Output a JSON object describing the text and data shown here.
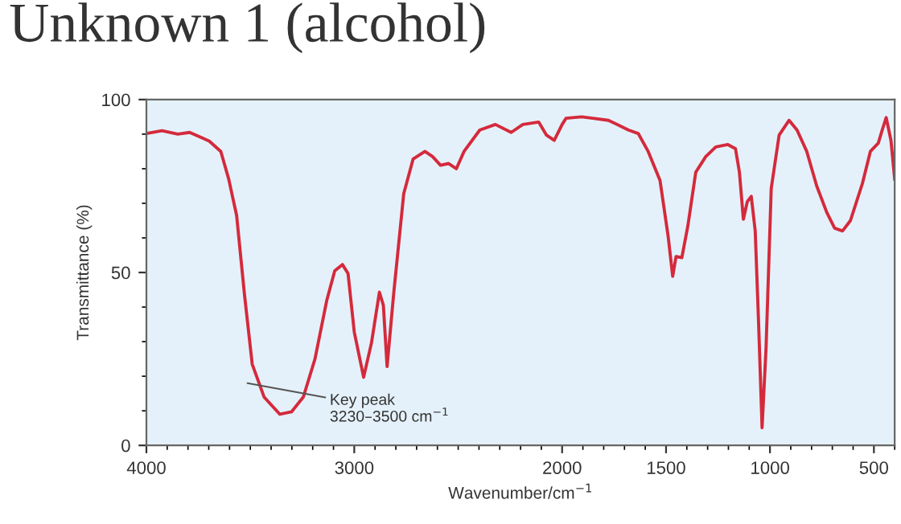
{
  "chart_data": {
    "type": "line",
    "title": "Unknown 1 (alcohol)",
    "xlabel": "Wavenumber/cm$^{−1}$",
    "ylabel": "Transmittance (%)",
    "x": [
      4000,
      3925,
      3849,
      3792,
      3698,
      3642,
      3604,
      3566,
      3528,
      3491,
      3434,
      3358,
      3302,
      3245,
      3189,
      3132,
      3094,
      3057,
      3030,
      3000,
      2955,
      2917,
      2879,
      2860,
      2842,
      2811,
      2762,
      2717,
      2660,
      2623,
      2585,
      2547,
      2509,
      2472,
      2396,
      2321,
      2245,
      2189,
      2113,
      2075,
      2038,
      2000,
      1981,
      1906,
      1853,
      1777,
      1681,
      1634,
      1586,
      1529,
      1490,
      1468,
      1452,
      1424,
      1395,
      1357,
      1309,
      1261,
      1204,
      1166,
      1147,
      1128,
      1109,
      1090,
      1071,
      1055,
      1038,
      1019,
      994,
      956,
      908,
      870,
      823,
      775,
      727,
      689,
      651,
      613,
      555,
      517,
      479,
      460,
      441,
      418,
      400
    ],
    "series": [
      {
        "color": "#d42a3c",
        "values": [
          90.2,
          91,
          90,
          90.5,
          88,
          85,
          77,
          66.5,
          43.5,
          23.5,
          14,
          9,
          9.7,
          14,
          25,
          42,
          50.5,
          52.3,
          49.7,
          32.8,
          19.7,
          29.7,
          44.3,
          40.5,
          22.8,
          43.5,
          72.8,
          82.8,
          85,
          83.5,
          81,
          81.5,
          80,
          85,
          91.2,
          92.8,
          90.5,
          92.8,
          93.5,
          89.7,
          88.2,
          92.8,
          94.6,
          95,
          94.6,
          94,
          91.2,
          90.2,
          85,
          76.6,
          60.5,
          48.9,
          54.6,
          54.3,
          63.5,
          79,
          83.5,
          86.3,
          87,
          85.8,
          79,
          65.4,
          70.5,
          72,
          62,
          35.8,
          5.1,
          28,
          74.3,
          89.7,
          94,
          91.2,
          85,
          75,
          67.4,
          62.8,
          62,
          65,
          75.8,
          85,
          87.4,
          91.2,
          94.8,
          88.2,
          77
        ]
      }
    ],
    "xlim": [
      4000,
      400
    ],
    "ylim": [
      0,
      100
    ],
    "xticks": [
      4000,
      3000,
      2000,
      1500,
      1000,
      500
    ],
    "yticks": [
      0,
      50,
      100
    ],
    "annotations": [
      "Key peak\n3230–3500 cm$^{−1}$"
    ],
    "grid": false,
    "marker": "none",
    "line_style": "solid"
  }
}
